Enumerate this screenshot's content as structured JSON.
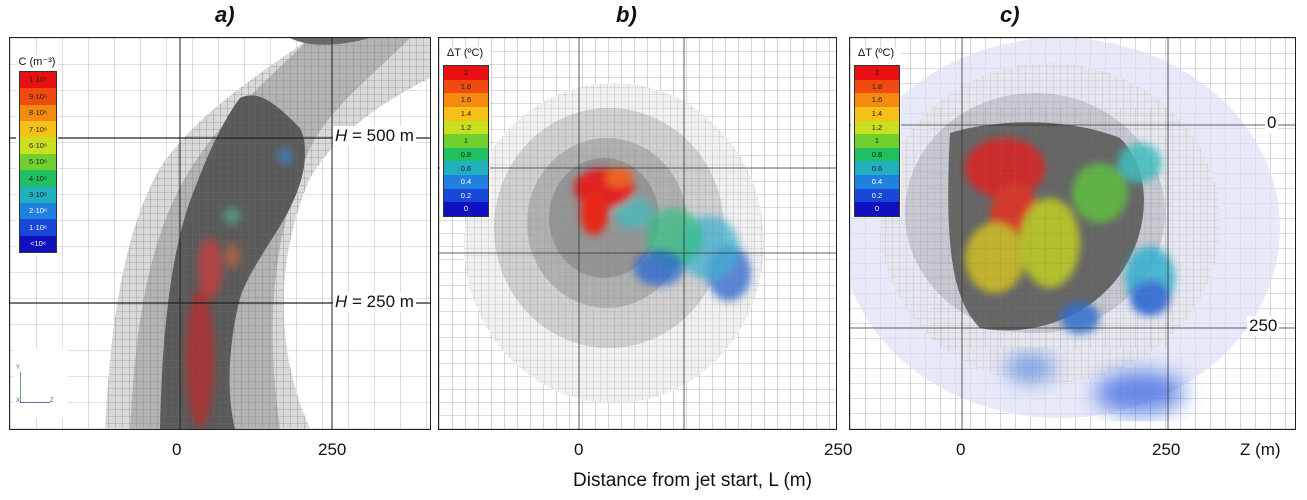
{
  "panels": [
    {
      "label": "a)"
    },
    {
      "label": "b)"
    },
    {
      "label": "c)"
    }
  ],
  "panel_a": {
    "legend_title": "C (m⁻³)",
    "legend_items": [
      "1·10⁷",
      "9·10⁶",
      "8·10⁶",
      "7·10⁶",
      "6·10⁶",
      "5·10⁶",
      "4·10⁶",
      "3·10⁶",
      "2·10⁶",
      "1·10⁶",
      "<10⁶"
    ],
    "legend_colors": [
      "#e81010",
      "#f04a10",
      "#f58a10",
      "#f7c018",
      "#c8e020",
      "#70d030",
      "#20c060",
      "#20b0c0",
      "#2080e0",
      "#1848d8",
      "#1010c0"
    ],
    "h_labels": [
      "H = 500 m",
      "H = 250 m"
    ],
    "x_ticks": [
      "0",
      "250"
    ],
    "axis_triad": {
      "y": "Y",
      "x": "X",
      "z": "Z"
    }
  },
  "panel_b": {
    "legend_title": "ΔT (ºC)",
    "legend_items": [
      "2",
      "1.8",
      "1.6",
      "1.4",
      "1.2",
      "1",
      "0.8",
      "0.6",
      "0.4",
      "0.2",
      "0"
    ],
    "legend_colors": [
      "#e81010",
      "#f04a10",
      "#f58a10",
      "#f7c018",
      "#c8e020",
      "#70d030",
      "#20c060",
      "#20b0c0",
      "#2080e0",
      "#1848d8",
      "#1010c0"
    ],
    "x_ticks": [
      "0",
      "250"
    ]
  },
  "panel_c": {
    "legend_title": "ΔT (ºC)",
    "legend_items": [
      "2",
      "1.8",
      "1.6",
      "1.4",
      "1.2",
      "1",
      "0.8",
      "0.6",
      "0.4",
      "0.2",
      "0"
    ],
    "legend_colors": [
      "#e81010",
      "#f04a10",
      "#f58a10",
      "#f7c018",
      "#c8e020",
      "#70d030",
      "#20c060",
      "#20b0c0",
      "#2080e0",
      "#1848d8",
      "#1010c0"
    ],
    "y_ticks": [
      "0",
      "250"
    ],
    "x_ticks": [
      "0",
      "250"
    ],
    "x_unit": "Z (m)"
  },
  "axis_title": "Distance from jet start, L (m)"
}
